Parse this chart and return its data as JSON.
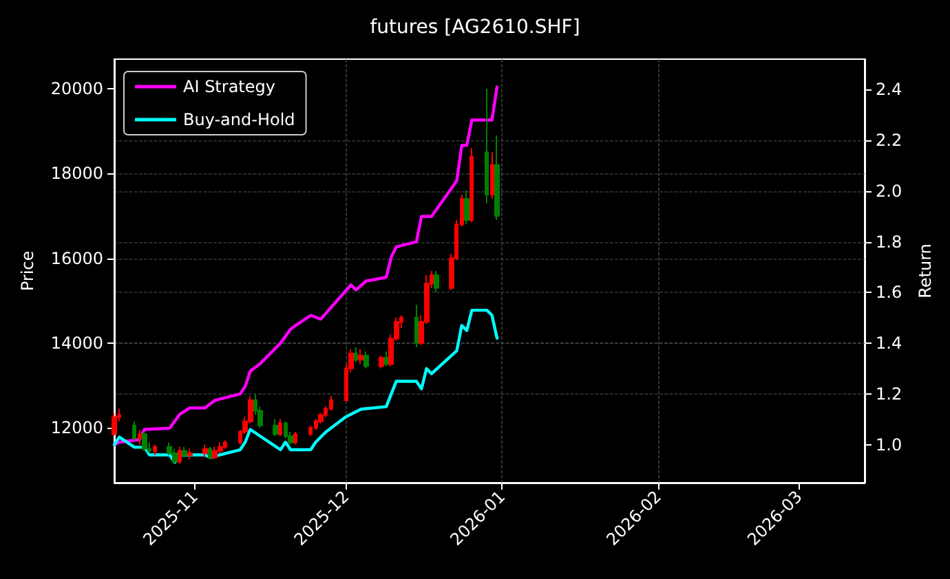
{
  "chart_data": {
    "type": "candlestick",
    "title": "futures [AG2610.SHF]",
    "ylabel": "Price",
    "y2label": "Return",
    "xlim": [
      "2025-10-16",
      "2026-03-14"
    ],
    "xticks": [
      {
        "value": "2025-11-01",
        "label": "2025-11"
      },
      {
        "value": "2025-12-01",
        "label": "2025-12"
      },
      {
        "value": "2026-01-01",
        "label": "2026-01"
      },
      {
        "value": "2026-02-01",
        "label": "2026-02"
      },
      {
        "value": "2026-03-01",
        "label": "2026-03"
      }
    ],
    "ylim": [
      10700,
      20700
    ],
    "yticks": [
      12000,
      14000,
      16000,
      18000,
      20000
    ],
    "y2lim": [
      0.85,
      2.52
    ],
    "y2ticks": [
      {
        "value": 1,
        "label": "1.0"
      },
      1.2,
      1.4,
      1.6,
      1.8,
      {
        "value": 2,
        "label": "2.0"
      },
      2.2,
      2.4
    ],
    "grid": true,
    "legend": "top left",
    "series": [
      {
        "type": "candlestick",
        "x": [
          "2025-10-16",
          "2025-10-17",
          "2025-10-20",
          "2025-10-21",
          "2025-10-22",
          "2025-10-23",
          "2025-10-24",
          "2025-10-27",
          "2025-10-28",
          "2025-10-29",
          "2025-10-30",
          "2025-10-31",
          "2025-11-03",
          "2025-11-04",
          "2025-11-05",
          "2025-11-06",
          "2025-11-07",
          "2025-11-10",
          "2025-11-11",
          "2025-11-12",
          "2025-11-13",
          "2025-11-14",
          "2025-11-17",
          "2025-11-18",
          "2025-11-19",
          "2025-11-20",
          "2025-11-21",
          "2025-11-24",
          "2025-11-25",
          "2025-11-26",
          "2025-11-27",
          "2025-11-28",
          "2025-12-01",
          "2025-12-02",
          "2025-12-03",
          "2025-12-04",
          "2025-12-05",
          "2025-12-08",
          "2025-12-09",
          "2025-12-10",
          "2025-12-11",
          "2025-12-12",
          "2025-12-15",
          "2025-12-16",
          "2025-12-17",
          "2025-12-18",
          "2025-12-19",
          "2025-12-22",
          "2025-12-23",
          "2025-12-24",
          "2025-12-25",
          "2025-12-26",
          "2025-12-29",
          "2025-12-30",
          "2025-12-31"
        ],
        "ohlc": [
          [
            11850,
            12350,
            11800,
            12250
          ],
          [
            12250,
            12450,
            12150,
            12300
          ],
          [
            12050,
            12150,
            11700,
            11750
          ],
          [
            11750,
            11950,
            11600,
            11850
          ],
          [
            11850,
            11900,
            11450,
            11500
          ],
          [
            11500,
            11650,
            11400,
            11450
          ],
          [
            11450,
            11600,
            11350,
            11550
          ],
          [
            11550,
            11650,
            11350,
            11400
          ],
          [
            11400,
            11500,
            11150,
            11200
          ],
          [
            11200,
            11550,
            11150,
            11450
          ],
          [
            11450,
            11550,
            11300,
            11350
          ],
          [
            11350,
            11500,
            11250,
            11400
          ],
          [
            11400,
            11600,
            11300,
            11500
          ],
          [
            11500,
            11550,
            11250,
            11300
          ],
          [
            11300,
            11550,
            11250,
            11450
          ],
          [
            11450,
            11650,
            11400,
            11550
          ],
          [
            11550,
            11700,
            11500,
            11650
          ],
          [
            11650,
            11950,
            11600,
            11900
          ],
          [
            11900,
            12250,
            11850,
            12150
          ],
          [
            12150,
            12750,
            12100,
            12650
          ],
          [
            12650,
            12800,
            12300,
            12400
          ],
          [
            12400,
            12500,
            12000,
            12050
          ],
          [
            12050,
            12200,
            11800,
            11850
          ],
          [
            11850,
            12200,
            11800,
            12100
          ],
          [
            12100,
            12150,
            11750,
            11800
          ],
          [
            11800,
            11900,
            11600,
            11650
          ],
          [
            11650,
            11900,
            11600,
            11850
          ],
          [
            11850,
            12050,
            11800,
            12000
          ],
          [
            12000,
            12200,
            11950,
            12150
          ],
          [
            12150,
            12350,
            12100,
            12300
          ],
          [
            12300,
            12500,
            12250,
            12450
          ],
          [
            12450,
            12750,
            12400,
            12650
          ],
          [
            12650,
            13500,
            12600,
            13400
          ],
          [
            13400,
            13850,
            13300,
            13750
          ],
          [
            13750,
            13900,
            13550,
            13600
          ],
          [
            13600,
            13850,
            13500,
            13700
          ],
          [
            13700,
            13800,
            13400,
            13450
          ],
          [
            13450,
            13700,
            13400,
            13650
          ],
          [
            13650,
            13800,
            13450,
            13500
          ],
          [
            13500,
            14200,
            13450,
            14100
          ],
          [
            14100,
            14600,
            14050,
            14500
          ],
          [
            14500,
            14650,
            14350,
            14600
          ],
          [
            14600,
            14900,
            13900,
            14000
          ],
          [
            14000,
            14650,
            13950,
            14500
          ],
          [
            14500,
            15600,
            14450,
            15400
          ],
          [
            15400,
            15700,
            15300,
            15600
          ],
          [
            15600,
            15700,
            15200,
            15300
          ],
          [
            15300,
            16100,
            15250,
            16000
          ],
          [
            16000,
            16900,
            15950,
            16800
          ],
          [
            16800,
            17500,
            16750,
            17400
          ],
          [
            17400,
            17600,
            16800,
            16900
          ],
          [
            16900,
            18600,
            16850,
            18400
          ],
          [
            18500,
            20000,
            17300,
            17500
          ],
          [
            17500,
            18500,
            17400,
            18200
          ],
          [
            18200,
            18900,
            16900,
            17000
          ]
        ],
        "colors": [
          "#ff0000",
          "#ff0000",
          "#008000",
          "#ff0000",
          "#008000",
          "#008000",
          "#ff0000",
          "#008000",
          "#008000",
          "#ff0000",
          "#008000",
          "#ff0000",
          "#ff0000",
          "#008000",
          "#ff0000",
          "#ff0000",
          "#ff0000",
          "#ff0000",
          "#ff0000",
          "#ff0000",
          "#008000",
          "#008000",
          "#008000",
          "#ff0000",
          "#008000",
          "#008000",
          "#ff0000",
          "#ff0000",
          "#ff0000",
          "#ff0000",
          "#ff0000",
          "#ff0000",
          "#ff0000",
          "#ff0000",
          "#008000",
          "#ff0000",
          "#008000",
          "#ff0000",
          "#008000",
          "#ff0000",
          "#ff0000",
          "#ff0000",
          "#008000",
          "#ff0000",
          "#ff0000",
          "#ff0000",
          "#008000",
          "#ff0000",
          "#ff0000",
          "#ff0000",
          "#008000",
          "#ff0000",
          "#008000",
          "#ff0000",
          "#008000"
        ]
      },
      {
        "type": "line",
        "name": "AI Strategy",
        "color": "#ff00ff",
        "axis": "y2",
        "marker": "none",
        "x": [
          "2025-10-16",
          "2025-10-17",
          "2025-10-21",
          "2025-10-22",
          "2025-10-27",
          "2025-10-29",
          "2025-10-31",
          "2025-11-03",
          "2025-11-05",
          "2025-11-10",
          "2025-11-11",
          "2025-11-12",
          "2025-11-14",
          "2025-11-18",
          "2025-11-20",
          "2025-11-21",
          "2025-11-24",
          "2025-11-26",
          "2025-12-02",
          "2025-12-03",
          "2025-12-05",
          "2025-12-09",
          "2025-12-10",
          "2025-12-11",
          "2025-12-15",
          "2025-12-16",
          "2025-12-18",
          "2025-12-23",
          "2025-12-24",
          "2025-12-25",
          "2025-12-26",
          "2025-12-30",
          "2025-12-31"
        ],
        "values": [
          1.0,
          1.01,
          1.02,
          1.06,
          1.065,
          1.12,
          1.145,
          1.145,
          1.175,
          1.2,
          1.23,
          1.29,
          1.32,
          1.4,
          1.455,
          1.47,
          1.51,
          1.495,
          1.63,
          1.61,
          1.645,
          1.66,
          1.74,
          1.78,
          1.8,
          1.9,
          1.9,
          2.04,
          2.18,
          2.18,
          2.28,
          2.28,
          2.41
        ]
      },
      {
        "type": "line",
        "name": "Buy-and-Hold",
        "color": "#00ffff",
        "axis": "y2",
        "marker": "none",
        "x": [
          "2025-10-16",
          "2025-10-17",
          "2025-10-20",
          "2025-10-22",
          "2025-10-23",
          "2025-10-27",
          "2025-10-28",
          "2025-10-29",
          "2025-10-31",
          "2025-11-03",
          "2025-11-04",
          "2025-11-06",
          "2025-11-10",
          "2025-11-11",
          "2025-11-12",
          "2025-11-18",
          "2025-11-19",
          "2025-11-20",
          "2025-11-24",
          "2025-11-25",
          "2025-11-27",
          "2025-12-01",
          "2025-12-03",
          "2025-12-04",
          "2025-12-09",
          "2025-12-10",
          "2025-12-11",
          "2025-12-15",
          "2025-12-16",
          "2025-12-17",
          "2025-12-18",
          "2025-12-23",
          "2025-12-24",
          "2025-12-25",
          "2025-12-26",
          "2025-12-29",
          "2025-12-30",
          "2025-12-31"
        ],
        "values": [
          1.0,
          1.03,
          0.99,
          0.99,
          0.96,
          0.96,
          0.93,
          0.96,
          0.96,
          0.96,
          0.95,
          0.96,
          0.98,
          1.01,
          1.06,
          0.98,
          1.01,
          0.98,
          0.98,
          1.01,
          1.05,
          1.11,
          1.13,
          1.14,
          1.15,
          1.2,
          1.25,
          1.25,
          1.22,
          1.3,
          1.28,
          1.37,
          1.47,
          1.45,
          1.53,
          1.53,
          1.51,
          1.42
        ]
      }
    ]
  }
}
